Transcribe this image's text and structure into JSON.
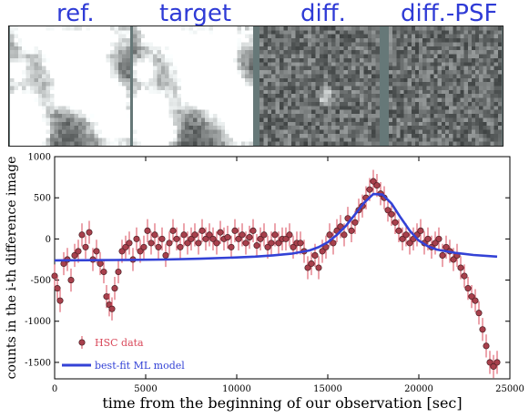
{
  "panels": {
    "titles": [
      "ref.",
      "target",
      "diff.",
      "diff.-PSF"
    ],
    "color": "#2f3bd6"
  },
  "chart_data": {
    "type": "scatter",
    "xlabel": "time from the beginning of our observation [sec]",
    "ylabel": "counts in the i-th difference image",
    "xlim": [
      0,
      25000
    ],
    "ylim": [
      -1700,
      1000
    ],
    "xticks": [
      0,
      5000,
      10000,
      15000,
      20000,
      25000
    ],
    "yticks": [
      -1500,
      -1000,
      -500,
      0,
      500,
      1000
    ],
    "legend_position": "bottom-left",
    "series": [
      {
        "name": "HSC data",
        "kind": "points-with-errorbars",
        "color": "#d9485a",
        "marker_fill": "#a8404c",
        "errorbar_halfwidth": 140,
        "x": [
          0,
          150,
          300,
          500,
          700,
          900,
          1100,
          1300,
          1500,
          1700,
          1900,
          2100,
          2300,
          2500,
          2700,
          2850,
          3000,
          3150,
          3300,
          3500,
          3700,
          3900,
          4100,
          4300,
          4500,
          4700,
          4900,
          5100,
          5300,
          5500,
          5700,
          5900,
          6100,
          6300,
          6500,
          6700,
          6900,
          7100,
          7300,
          7500,
          7700,
          7900,
          8100,
          8300,
          8500,
          8700,
          8900,
          9100,
          9300,
          9500,
          9700,
          9900,
          10100,
          10300,
          10500,
          10700,
          10900,
          11100,
          11300,
          11500,
          11700,
          11900,
          12100,
          12300,
          12500,
          12700,
          12900,
          13100,
          13300,
          13500,
          13700,
          13900,
          14100,
          14300,
          14500,
          14700,
          14900,
          15100,
          15300,
          15500,
          15700,
          15900,
          16100,
          16300,
          16500,
          16700,
          16900,
          17100,
          17300,
          17500,
          17700,
          17900,
          18100,
          18300,
          18500,
          18700,
          18900,
          19100,
          19300,
          19500,
          19700,
          19900,
          20100,
          20300,
          20500,
          20700,
          20900,
          21100,
          21300,
          21500,
          21700,
          21900,
          22100,
          22300,
          22500,
          22700,
          22900,
          23100,
          23300,
          23500,
          23700,
          23900,
          24100,
          24300
        ],
        "y": [
          -450,
          -600,
          -750,
          -300,
          -250,
          -500,
          -200,
          -150,
          50,
          -100,
          80,
          -250,
          -150,
          -300,
          -400,
          -700,
          -800,
          -850,
          -600,
          -400,
          -150,
          -100,
          -50,
          -250,
          0,
          -150,
          -100,
          100,
          -50,
          50,
          -100,
          0,
          -200,
          -50,
          100,
          0,
          -100,
          50,
          -50,
          0,
          50,
          -50,
          100,
          0,
          50,
          0,
          -50,
          80,
          0,
          20,
          -100,
          100,
          0,
          50,
          -50,
          20,
          100,
          -80,
          0,
          50,
          -100,
          -50,
          50,
          -50,
          0,
          0,
          50,
          -100,
          -50,
          -50,
          -150,
          -350,
          -300,
          -200,
          -350,
          -150,
          -100,
          50,
          -50,
          100,
          150,
          50,
          250,
          100,
          200,
          350,
          400,
          500,
          600,
          700,
          650,
          550,
          500,
          350,
          300,
          200,
          100,
          0,
          50,
          -50,
          0,
          50,
          100,
          -50,
          0,
          -100,
          -50,
          0,
          -200,
          -100,
          -150,
          -250,
          -200,
          -350,
          -450,
          -600,
          -700,
          -750,
          -900,
          -1100,
          -1300,
          -1500,
          -1550,
          -1500
        ]
      },
      {
        "name": "best-fit ML model",
        "kind": "line",
        "color": "#3342d6",
        "x": [
          0,
          2000,
          4000,
          6000,
          8000,
          10000,
          11000,
          12000,
          13000,
          14000,
          14500,
          15000,
          15500,
          16000,
          16500,
          17000,
          17500,
          18000,
          18500,
          19000,
          19500,
          20000,
          20500,
          21000,
          22000,
          23000,
          24300
        ],
        "y": [
          -260,
          -258,
          -255,
          -250,
          -240,
          -225,
          -215,
          -200,
          -180,
          -140,
          -100,
          -40,
          50,
          160,
          300,
          440,
          545,
          540,
          430,
          260,
          100,
          -20,
          -90,
          -130,
          -170,
          -195,
          -215
        ]
      }
    ]
  }
}
